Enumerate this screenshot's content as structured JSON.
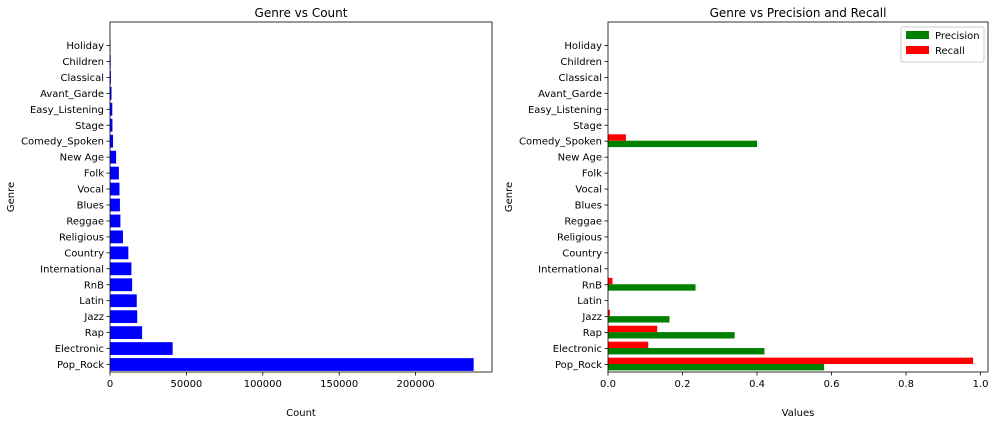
{
  "chart_data": [
    {
      "type": "bar",
      "orientation": "horizontal",
      "title": "Genre vs Count",
      "xlabel": "Count",
      "ylabel": "Genre",
      "xlim": [
        0,
        250000
      ],
      "xticks": [
        0,
        50000,
        100000,
        150000,
        200000
      ],
      "xtick_labels": [
        "0",
        "50000",
        "100000",
        "150000",
        "200000"
      ],
      "categories": [
        "Pop_Rock",
        "Electronic",
        "Rap",
        "Jazz",
        "Latin",
        "RnB",
        "International",
        "Country",
        "Religious",
        "Reggae",
        "Blues",
        "Vocal",
        "Folk",
        "New Age",
        "Comedy_Spoken",
        "Stage",
        "Easy_Listening",
        "Avant_Garde",
        "Classical",
        "Children",
        "Holiday"
      ],
      "values": [
        238000,
        41000,
        21000,
        17800,
        17500,
        14500,
        14000,
        12000,
        8500,
        6800,
        6500,
        6200,
        5800,
        4000,
        2000,
        1600,
        1500,
        1000,
        600,
        450,
        200
      ],
      "color": "#0000ff",
      "grid": false
    },
    {
      "type": "bar",
      "orientation": "horizontal",
      "title": "Genre vs Precision and Recall",
      "xlabel": "Values",
      "ylabel": "Genre",
      "xlim": [
        0,
        1.02
      ],
      "xticks": [
        0,
        0.2,
        0.4,
        0.6,
        0.8,
        1.0
      ],
      "xtick_labels": [
        "0.0",
        "0.2",
        "0.4",
        "0.6",
        "0.8",
        "1.0"
      ],
      "categories": [
        "Pop_Rock",
        "Electronic",
        "Rap",
        "Jazz",
        "Latin",
        "RnB",
        "International",
        "Country",
        "Religious",
        "Reggae",
        "Blues",
        "Vocal",
        "Folk",
        "New Age",
        "Comedy_Spoken",
        "Stage",
        "Easy_Listening",
        "Avant_Garde",
        "Classical",
        "Children",
        "Holiday"
      ],
      "series": [
        {
          "name": "Precision",
          "color": "#008000",
          "values": [
            0.58,
            0.42,
            0.34,
            0.165,
            0,
            0.235,
            0,
            0,
            0,
            0,
            0,
            0,
            0,
            0,
            0.4,
            0,
            0,
            0,
            0,
            0,
            0
          ]
        },
        {
          "name": "Recall",
          "color": "#ff0000",
          "values": [
            0.98,
            0.108,
            0.132,
            0.005,
            0,
            0.012,
            0,
            0,
            0,
            0,
            0,
            0,
            0,
            0,
            0.048,
            0,
            0,
            0,
            0,
            0,
            0
          ]
        }
      ],
      "legend": "top-right",
      "grid": false
    }
  ]
}
